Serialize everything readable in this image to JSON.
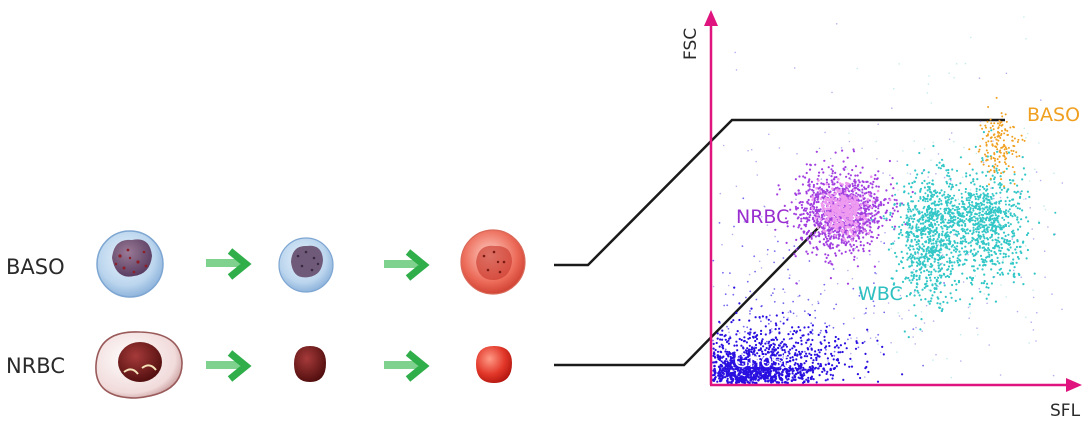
{
  "rows": [
    {
      "label": "BASO"
    },
    {
      "label": "NRBC"
    }
  ],
  "plot": {
    "x_axis_label": "SFL",
    "y_axis_label": "FSC",
    "axis_color": "#e0147f",
    "clusters": [
      {
        "label": "Ghost",
        "color": "#2a10e0"
      },
      {
        "label": "NRBC",
        "color": "#a23fe0"
      },
      {
        "label": "WBC",
        "color": "#33c7c7"
      },
      {
        "label": "BASO",
        "color": "#f0a020"
      }
    ]
  },
  "colors": {
    "arrow": "#2fae4a",
    "connector": "#1a1a1a",
    "baso_cell": "#9fc3e6",
    "nrbc_cell": "#8a1a1a",
    "lysed_red": "#d8261c"
  },
  "icons": [
    "basophil-cell-icon",
    "nrbc-cell-icon",
    "green-arrow-icon"
  ]
}
